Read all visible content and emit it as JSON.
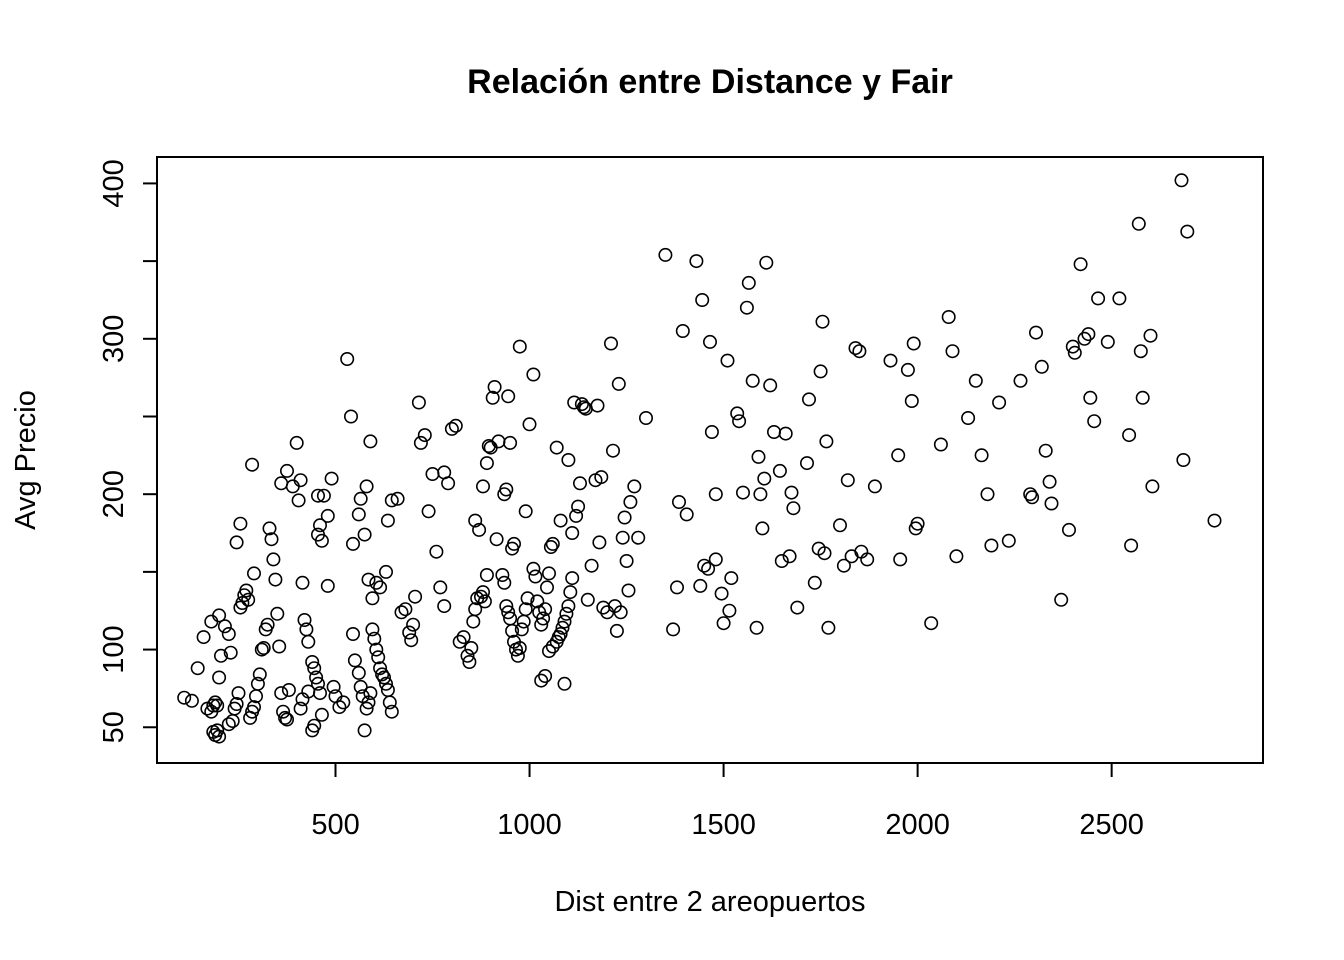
{
  "chart_data": {
    "type": "scatter",
    "title": "Relación entre Distance y Fair",
    "xlabel": "Dist entre 2 areopuertos",
    "ylabel": "Avg Precio",
    "xlim": [
      40,
      2890
    ],
    "ylim": [
      27,
      417
    ],
    "xticks": [
      500,
      1000,
      1500,
      2000,
      2500
    ],
    "yticks": [
      50,
      100,
      150,
      200,
      250,
      300,
      350,
      400
    ],
    "ytick_labels": [
      "50",
      "100",
      "",
      "200",
      "",
      "300",
      "",
      "400"
    ],
    "grid": false,
    "legend": "none",
    "point_shape": "open-circle",
    "color": "#000000",
    "points": [
      [
        110,
        69
      ],
      [
        130,
        67
      ],
      [
        145,
        88
      ],
      [
        160,
        108
      ],
      [
        170,
        62
      ],
      [
        180,
        60
      ],
      [
        185,
        64
      ],
      [
        190,
        66
      ],
      [
        195,
        64
      ],
      [
        200,
        82
      ],
      [
        205,
        96
      ],
      [
        185,
        47
      ],
      [
        190,
        45
      ],
      [
        195,
        48
      ],
      [
        200,
        44
      ],
      [
        180,
        118
      ],
      [
        200,
        122
      ],
      [
        215,
        115
      ],
      [
        225,
        110
      ],
      [
        230,
        98
      ],
      [
        225,
        52
      ],
      [
        235,
        54
      ],
      [
        240,
        62
      ],
      [
        245,
        65
      ],
      [
        250,
        72
      ],
      [
        255,
        127
      ],
      [
        260,
        130
      ],
      [
        265,
        135
      ],
      [
        270,
        138
      ],
      [
        275,
        132
      ],
      [
        280,
        56
      ],
      [
        285,
        60
      ],
      [
        290,
        63
      ],
      [
        295,
        70
      ],
      [
        300,
        78
      ],
      [
        305,
        84
      ],
      [
        310,
        100
      ],
      [
        315,
        101
      ],
      [
        320,
        113
      ],
      [
        325,
        116
      ],
      [
        245,
        169
      ],
      [
        255,
        181
      ],
      [
        285,
        219
      ],
      [
        290,
        149
      ],
      [
        330,
        178
      ],
      [
        335,
        171
      ],
      [
        340,
        158
      ],
      [
        345,
        145
      ],
      [
        350,
        123
      ],
      [
        355,
        102
      ],
      [
        360,
        72
      ],
      [
        365,
        60
      ],
      [
        370,
        56
      ],
      [
        375,
        55
      ],
      [
        380,
        74
      ],
      [
        360,
        207
      ],
      [
        375,
        215
      ],
      [
        390,
        205
      ],
      [
        400,
        233
      ],
      [
        410,
        209
      ],
      [
        405,
        196
      ],
      [
        415,
        143
      ],
      [
        420,
        119
      ],
      [
        425,
        113
      ],
      [
        430,
        105
      ],
      [
        440,
        92
      ],
      [
        445,
        88
      ],
      [
        450,
        82
      ],
      [
        455,
        78
      ],
      [
        460,
        72
      ],
      [
        465,
        58
      ],
      [
        440,
        48
      ],
      [
        445,
        51
      ],
      [
        410,
        62
      ],
      [
        415,
        68
      ],
      [
        430,
        73
      ],
      [
        455,
        174
      ],
      [
        460,
        180
      ],
      [
        465,
        170
      ],
      [
        470,
        199
      ],
      [
        480,
        186
      ],
      [
        490,
        210
      ],
      [
        455,
        199
      ],
      [
        480,
        141
      ],
      [
        495,
        76
      ],
      [
        500,
        70
      ],
      [
        510,
        63
      ],
      [
        520,
        66
      ],
      [
        530,
        287
      ],
      [
        540,
        250
      ],
      [
        545,
        168
      ],
      [
        560,
        187
      ],
      [
        565,
        197
      ],
      [
        575,
        174
      ],
      [
        580,
        205
      ],
      [
        590,
        234
      ],
      [
        545,
        110
      ],
      [
        550,
        93
      ],
      [
        560,
        85
      ],
      [
        565,
        76
      ],
      [
        570,
        70
      ],
      [
        575,
        48
      ],
      [
        580,
        62
      ],
      [
        585,
        66
      ],
      [
        590,
        72
      ],
      [
        595,
        113
      ],
      [
        600,
        107
      ],
      [
        605,
        100
      ],
      [
        610,
        95
      ],
      [
        615,
        88
      ],
      [
        620,
        84
      ],
      [
        625,
        82
      ],
      [
        630,
        78
      ],
      [
        635,
        74
      ],
      [
        640,
        66
      ],
      [
        645,
        60
      ],
      [
        585,
        145
      ],
      [
        595,
        133
      ],
      [
        605,
        143
      ],
      [
        615,
        140
      ],
      [
        630,
        150
      ],
      [
        635,
        183
      ],
      [
        645,
        196
      ],
      [
        660,
        197
      ],
      [
        670,
        124
      ],
      [
        680,
        126
      ],
      [
        690,
        111
      ],
      [
        695,
        106
      ],
      [
        700,
        116
      ],
      [
        705,
        134
      ],
      [
        715,
        259
      ],
      [
        720,
        233
      ],
      [
        730,
        238
      ],
      [
        740,
        189
      ],
      [
        750,
        213
      ],
      [
        760,
        163
      ],
      [
        770,
        140
      ],
      [
        780,
        128
      ],
      [
        780,
        214
      ],
      [
        790,
        207
      ],
      [
        800,
        242
      ],
      [
        810,
        244
      ],
      [
        820,
        105
      ],
      [
        830,
        108
      ],
      [
        840,
        96
      ],
      [
        845,
        92
      ],
      [
        850,
        101
      ],
      [
        855,
        118
      ],
      [
        860,
        126
      ],
      [
        865,
        133
      ],
      [
        875,
        134
      ],
      [
        880,
        137
      ],
      [
        885,
        131
      ],
      [
        890,
        148
      ],
      [
        860,
        183
      ],
      [
        870,
        177
      ],
      [
        880,
        205
      ],
      [
        890,
        220
      ],
      [
        895,
        231
      ],
      [
        900,
        230
      ],
      [
        905,
        262
      ],
      [
        910,
        269
      ],
      [
        915,
        171
      ],
      [
        920,
        234
      ],
      [
        930,
        148
      ],
      [
        935,
        143
      ],
      [
        940,
        128
      ],
      [
        945,
        124
      ],
      [
        950,
        120
      ],
      [
        955,
        112
      ],
      [
        960,
        105
      ],
      [
        965,
        100
      ],
      [
        970,
        96
      ],
      [
        975,
        101
      ],
      [
        980,
        113
      ],
      [
        985,
        118
      ],
      [
        990,
        126
      ],
      [
        995,
        133
      ],
      [
        935,
        200
      ],
      [
        940,
        203
      ],
      [
        945,
        263
      ],
      [
        950,
        233
      ],
      [
        955,
        165
      ],
      [
        960,
        168
      ],
      [
        975,
        295
      ],
      [
        990,
        189
      ],
      [
        1000,
        245
      ],
      [
        1010,
        277
      ],
      [
        1010,
        152
      ],
      [
        1015,
        147
      ],
      [
        1020,
        131
      ],
      [
        1025,
        124
      ],
      [
        1030,
        116
      ],
      [
        1035,
        120
      ],
      [
        1040,
        126
      ],
      [
        1045,
        140
      ],
      [
        1050,
        149
      ],
      [
        1055,
        166
      ],
      [
        1060,
        168
      ],
      [
        1030,
        80
      ],
      [
        1040,
        83
      ],
      [
        1050,
        99
      ],
      [
        1060,
        102
      ],
      [
        1070,
        105
      ],
      [
        1075,
        108
      ],
      [
        1080,
        110
      ],
      [
        1085,
        114
      ],
      [
        1090,
        118
      ],
      [
        1095,
        123
      ],
      [
        1100,
        128
      ],
      [
        1105,
        137
      ],
      [
        1110,
        146
      ],
      [
        1070,
        230
      ],
      [
        1080,
        183
      ],
      [
        1090,
        78
      ],
      [
        1100,
        222
      ],
      [
        1110,
        175
      ],
      [
        1115,
        259
      ],
      [
        1120,
        186
      ],
      [
        1125,
        192
      ],
      [
        1130,
        207
      ],
      [
        1135,
        258
      ],
      [
        1140,
        256
      ],
      [
        1145,
        255
      ],
      [
        1150,
        132
      ],
      [
        1160,
        154
      ],
      [
        1170,
        209
      ],
      [
        1175,
        257
      ],
      [
        1180,
        169
      ],
      [
        1185,
        211
      ],
      [
        1190,
        127
      ],
      [
        1200,
        124
      ],
      [
        1210,
        297
      ],
      [
        1215,
        228
      ],
      [
        1220,
        128
      ],
      [
        1225,
        112
      ],
      [
        1230,
        271
      ],
      [
        1235,
        124
      ],
      [
        1240,
        172
      ],
      [
        1245,
        185
      ],
      [
        1250,
        157
      ],
      [
        1255,
        138
      ],
      [
        1260,
        195
      ],
      [
        1270,
        205
      ],
      [
        1280,
        172
      ],
      [
        1300,
        249
      ],
      [
        1350,
        354
      ],
      [
        1370,
        113
      ],
      [
        1380,
        140
      ],
      [
        1385,
        195
      ],
      [
        1395,
        305
      ],
      [
        1405,
        187
      ],
      [
        1430,
        350
      ],
      [
        1445,
        325
      ],
      [
        1440,
        141
      ],
      [
        1450,
        154
      ],
      [
        1460,
        152
      ],
      [
        1465,
        298
      ],
      [
        1470,
        240
      ],
      [
        1480,
        158
      ],
      [
        1480,
        200
      ],
      [
        1495,
        136
      ],
      [
        1500,
        117
      ],
      [
        1510,
        286
      ],
      [
        1515,
        125
      ],
      [
        1520,
        146
      ],
      [
        1535,
        252
      ],
      [
        1540,
        247
      ],
      [
        1550,
        201
      ],
      [
        1560,
        320
      ],
      [
        1565,
        336
      ],
      [
        1575,
        273
      ],
      [
        1585,
        114
      ],
      [
        1590,
        224
      ],
      [
        1595,
        200
      ],
      [
        1600,
        178
      ],
      [
        1605,
        210
      ],
      [
        1610,
        349
      ],
      [
        1620,
        270
      ],
      [
        1630,
        240
      ],
      [
        1645,
        215
      ],
      [
        1650,
        157
      ],
      [
        1660,
        239
      ],
      [
        1670,
        160
      ],
      [
        1675,
        201
      ],
      [
        1680,
        191
      ],
      [
        1690,
        127
      ],
      [
        1715,
        220
      ],
      [
        1720,
        261
      ],
      [
        1735,
        143
      ],
      [
        1745,
        165
      ],
      [
        1750,
        279
      ],
      [
        1755,
        311
      ],
      [
        1760,
        162
      ],
      [
        1765,
        234
      ],
      [
        1770,
        114
      ],
      [
        1800,
        180
      ],
      [
        1810,
        154
      ],
      [
        1820,
        209
      ],
      [
        1830,
        160
      ],
      [
        1840,
        294
      ],
      [
        1850,
        292
      ],
      [
        1855,
        163
      ],
      [
        1870,
        158
      ],
      [
        1890,
        205
      ],
      [
        1930,
        286
      ],
      [
        1950,
        225
      ],
      [
        1955,
        158
      ],
      [
        1975,
        280
      ],
      [
        1985,
        260
      ],
      [
        1990,
        297
      ],
      [
        1995,
        178
      ],
      [
        2000,
        181
      ],
      [
        2035,
        117
      ],
      [
        2060,
        232
      ],
      [
        2080,
        314
      ],
      [
        2090,
        292
      ],
      [
        2100,
        160
      ],
      [
        2130,
        249
      ],
      [
        2150,
        273
      ],
      [
        2165,
        225
      ],
      [
        2180,
        200
      ],
      [
        2190,
        167
      ],
      [
        2210,
        259
      ],
      [
        2235,
        170
      ],
      [
        2265,
        273
      ],
      [
        2290,
        200
      ],
      [
        2295,
        198
      ],
      [
        2305,
        304
      ],
      [
        2320,
        282
      ],
      [
        2330,
        228
      ],
      [
        2340,
        208
      ],
      [
        2345,
        194
      ],
      [
        2370,
        132
      ],
      [
        2390,
        177
      ],
      [
        2400,
        295
      ],
      [
        2405,
        291
      ],
      [
        2420,
        348
      ],
      [
        2430,
        300
      ],
      [
        2440,
        303
      ],
      [
        2445,
        262
      ],
      [
        2455,
        247
      ],
      [
        2465,
        326
      ],
      [
        2490,
        298
      ],
      [
        2520,
        326
      ],
      [
        2545,
        238
      ],
      [
        2550,
        167
      ],
      [
        2570,
        374
      ],
      [
        2575,
        292
      ],
      [
        2580,
        262
      ],
      [
        2600,
        302
      ],
      [
        2605,
        205
      ],
      [
        2680,
        402
      ],
      [
        2685,
        222
      ],
      [
        2695,
        369
      ],
      [
        2765,
        183
      ]
    ]
  }
}
